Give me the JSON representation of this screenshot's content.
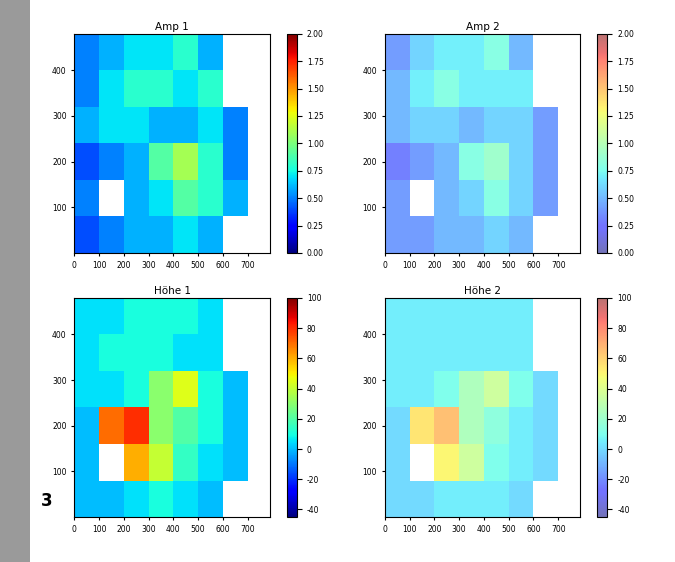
{
  "figure_label": "3",
  "chart_data": [
    {
      "type": "heatmap",
      "title": "Amp 1",
      "x_edges": [
        0,
        100,
        200,
        300,
        400,
        500,
        600,
        700,
        790
      ],
      "y_edges": [
        0,
        80,
        160,
        240,
        320,
        400,
        480
      ],
      "cells": [
        [
          0.4,
          0.5,
          0.6,
          0.6,
          0.7,
          0.6,
          null,
          null
        ],
        [
          0.5,
          null,
          0.6,
          0.7,
          0.9,
          0.8,
          0.6,
          null
        ],
        [
          0.4,
          0.5,
          0.6,
          0.9,
          1.1,
          0.8,
          0.5,
          null
        ],
        [
          0.6,
          0.7,
          0.7,
          0.6,
          0.6,
          0.7,
          0.5,
          null
        ],
        [
          0.5,
          0.7,
          0.8,
          0.8,
          0.7,
          0.8,
          null,
          null
        ],
        [
          0.5,
          0.6,
          0.7,
          0.7,
          0.8,
          0.6,
          null,
          null
        ]
      ],
      "xlim": [
        0,
        790
      ],
      "ylim": [
        0,
        480
      ],
      "xticks": [
        0,
        100,
        200,
        300,
        400,
        500,
        600,
        700
      ],
      "yticks": [
        100,
        200,
        300,
        400
      ],
      "colorbar_range": [
        0,
        2
      ],
      "colorbar_ticks": [
        {
          "value": 0,
          "label": "0.00"
        },
        {
          "value": 0.25,
          "label": "0.25"
        },
        {
          "value": 0.5,
          "label": "0.50"
        },
        {
          "value": 0.75,
          "label": "0.75"
        },
        {
          "value": 1,
          "label": "1.00"
        },
        {
          "value": 1.25,
          "label": "1.25"
        },
        {
          "value": 1.5,
          "label": "1.50"
        },
        {
          "value": 1.75,
          "label": "1.75"
        },
        {
          "value": 2,
          "label": "2.00"
        }
      ]
    },
    {
      "type": "heatmap",
      "title": "Amp 2",
      "x_edges": [
        0,
        100,
        200,
        300,
        400,
        500,
        600,
        700,
        790
      ],
      "y_edges": [
        0,
        80,
        160,
        240,
        320,
        400,
        480
      ],
      "cells": [
        [
          0.4,
          0.4,
          0.5,
          0.5,
          0.6,
          0.5,
          null,
          null
        ],
        [
          0.4,
          null,
          0.5,
          0.6,
          0.8,
          0.6,
          0.4,
          null
        ],
        [
          0.3,
          0.4,
          0.5,
          0.8,
          0.9,
          0.6,
          0.4,
          null
        ],
        [
          0.5,
          0.6,
          0.6,
          0.5,
          0.6,
          0.6,
          0.4,
          null
        ],
        [
          0.5,
          0.7,
          0.8,
          0.7,
          0.7,
          0.7,
          null,
          null
        ],
        [
          0.4,
          0.6,
          0.7,
          0.7,
          0.8,
          0.5,
          null,
          null
        ]
      ],
      "xlim": [
        0,
        790
      ],
      "ylim": [
        0,
        480
      ],
      "xticks": [
        0,
        100,
        200,
        300,
        400,
        500,
        600,
        700
      ],
      "yticks": [
        100,
        200,
        300,
        400
      ],
      "colorbar_range": [
        0,
        2
      ],
      "colorbar_ticks": [
        {
          "value": 0,
          "label": "0.00"
        },
        {
          "value": 0.25,
          "label": "0.25"
        },
        {
          "value": 0.5,
          "label": "0.50"
        },
        {
          "value": 0.75,
          "label": "0.75"
        },
        {
          "value": 1,
          "label": "1.00"
        },
        {
          "value": 1.25,
          "label": "1.25"
        },
        {
          "value": 1.5,
          "label": "1.50"
        },
        {
          "value": 1.75,
          "label": "1.75"
        },
        {
          "value": 2,
          "label": "2.00"
        }
      ]
    },
    {
      "type": "heatmap",
      "title": "Höhe 1",
      "x_edges": [
        0,
        100,
        200,
        300,
        400,
        500,
        600,
        700,
        790
      ],
      "y_edges": [
        0,
        80,
        160,
        240,
        320,
        400,
        480
      ],
      "cells": [
        [
          0,
          0,
          5,
          10,
          5,
          0,
          null,
          null
        ],
        [
          0,
          null,
          60,
          40,
          15,
          5,
          0,
          null
        ],
        [
          0,
          70,
          80,
          30,
          20,
          10,
          0,
          null
        ],
        [
          5,
          5,
          10,
          30,
          45,
          10,
          0,
          null
        ],
        [
          5,
          10,
          10,
          10,
          5,
          5,
          null,
          null
        ],
        [
          5,
          5,
          10,
          10,
          10,
          5,
          null,
          null
        ]
      ],
      "xlim": [
        0,
        790
      ],
      "ylim": [
        0,
        480
      ],
      "xticks": [
        0,
        100,
        200,
        300,
        400,
        500,
        600,
        700
      ],
      "yticks": [
        100,
        200,
        300,
        400
      ],
      "colorbar_range": [
        -45,
        100
      ],
      "colorbar_ticks": [
        -40,
        -20,
        0,
        20,
        40,
        60,
        80,
        100
      ]
    },
    {
      "type": "heatmap",
      "title": "Höhe 2",
      "x_edges": [
        0,
        100,
        200,
        300,
        400,
        500,
        600,
        700,
        790
      ],
      "y_edges": [
        0,
        80,
        160,
        240,
        320,
        400,
        480
      ],
      "cells": [
        [
          0,
          0,
          5,
          5,
          5,
          0,
          null,
          null
        ],
        [
          0,
          null,
          50,
          35,
          10,
          5,
          0,
          null
        ],
        [
          0,
          55,
          65,
          25,
          15,
          5,
          0,
          null
        ],
        [
          5,
          5,
          10,
          25,
          35,
          10,
          0,
          null
        ],
        [
          5,
          5,
          5,
          5,
          5,
          5,
          null,
          null
        ],
        [
          5,
          5,
          5,
          5,
          5,
          5,
          null,
          null
        ]
      ],
      "xlim": [
        0,
        790
      ],
      "ylim": [
        0,
        480
      ],
      "xticks": [
        0,
        100,
        200,
        300,
        400,
        500,
        600,
        700
      ],
      "yticks": [
        100,
        200,
        300,
        400
      ],
      "colorbar_range": [
        -45,
        100
      ],
      "colorbar_ticks": [
        -40,
        -20,
        0,
        20,
        40,
        60,
        80,
        100
      ]
    }
  ]
}
